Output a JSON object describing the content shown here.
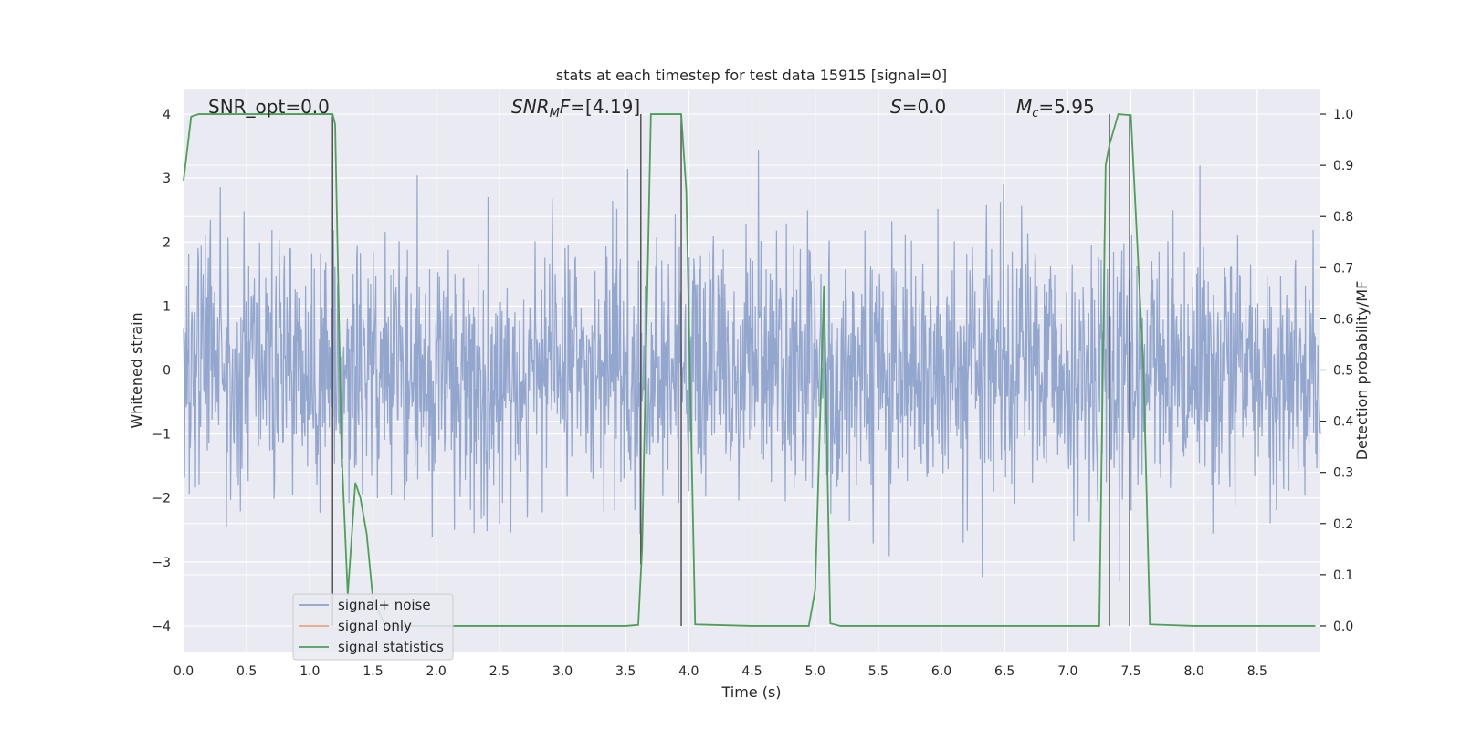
{
  "chart_data": {
    "type": "line",
    "title": "stats at each timestep for test data 15915 [signal=0]",
    "xlabel": "Time (s)",
    "ylabel": "Whitened strain",
    "ylabel_right": "Detection probability/MF",
    "xlim": [
      0,
      9
    ],
    "ylim": [
      -4.4,
      4.4
    ],
    "ylim_right": [
      -0.05,
      1.05
    ],
    "xticks": [
      0.0,
      0.5,
      1.0,
      1.5,
      2.0,
      2.5,
      3.0,
      3.5,
      4.0,
      4.5,
      5.0,
      5.5,
      6.0,
      6.5,
      7.0,
      7.5,
      8.0,
      8.5
    ],
    "xtick_labels": [
      "0.0",
      "0.5",
      "1.0",
      "1.5",
      "2.0",
      "2.5",
      "3.0",
      "3.5",
      "4.0",
      "4.5",
      "5.0",
      "5.5",
      "6.0",
      "6.5",
      "7.0",
      "7.5",
      "8.0",
      "8.5"
    ],
    "yticks": [
      -4,
      -3,
      -2,
      -1,
      0,
      1,
      2,
      3,
      4
    ],
    "ytick_labels": [
      "−4",
      "−3",
      "−2",
      "−1",
      "0",
      "1",
      "2",
      "3",
      "4"
    ],
    "yticks_right": [
      0.0,
      0.1,
      0.2,
      0.3,
      0.4,
      0.5,
      0.6,
      0.7,
      0.8,
      0.9,
      1.0
    ],
    "ytick_labels_right": [
      "0.0",
      "0.1",
      "0.2",
      "0.3",
      "0.4",
      "0.5",
      "0.6",
      "0.7",
      "0.8",
      "0.9",
      "1.0"
    ],
    "grid": true,
    "legend_position": "lower-left",
    "annotations": {
      "snr_opt": "SNR_opt=0.0",
      "snr_mf_base": "SNR",
      "snr_mf_sub": "M",
      "snr_mf_rest": "F=[4.19]",
      "s_italic": "S",
      "s_rest": "=0.0",
      "mc_base": "M",
      "mc_sub": "c",
      "mc_rest": "=5.95"
    },
    "series": [
      {
        "name": "signal+ noise",
        "color": "#8ea2cb",
        "axis": "left",
        "kind": "whitened-noise",
        "spread_std": 1.0,
        "x_range": [
          0,
          9
        ]
      },
      {
        "name": "signal only",
        "color": "#e9a585",
        "axis": "left",
        "x": [
          0,
          9
        ],
        "y": [
          0,
          0
        ]
      },
      {
        "name": "signal statistics",
        "color": "#4e9f58",
        "axis": "right",
        "x": [
          0.0,
          0.06,
          0.12,
          0.5,
          1.0,
          1.18,
          1.2,
          1.25,
          1.3,
          1.36,
          1.4,
          1.45,
          1.5,
          1.6,
          2.0,
          2.5,
          3.0,
          3.5,
          3.6,
          3.63,
          3.7,
          3.94,
          3.98,
          4.05,
          4.5,
          4.95,
          5.0,
          5.07,
          5.12,
          5.2,
          6.0,
          6.5,
          7.0,
          7.25,
          7.3,
          7.33,
          7.4,
          7.5,
          7.6,
          7.65,
          8.0,
          8.5,
          8.96
        ],
        "y": [
          0.87,
          0.995,
          1.0,
          1.0,
          1.0,
          1.0,
          0.98,
          0.35,
          0.06,
          0.28,
          0.25,
          0.18,
          0.05,
          0.0,
          0.0,
          0.0,
          0.0,
          0.0,
          0.002,
          0.15,
          1.0,
          1.0,
          0.85,
          0.003,
          0.0,
          0.0,
          0.07,
          0.665,
          0.005,
          0.0,
          0.0,
          0.0,
          0.0,
          0.0,
          0.9,
          0.94,
          1.0,
          0.998,
          0.5,
          0.003,
          0.0,
          0.0,
          0.0
        ]
      }
    ],
    "vertical_lines_color": "#555555",
    "vertical_lines": [
      {
        "x": 1.18,
        "y_top": 1.0,
        "y_bottom": 0.0
      },
      {
        "x": 3.62,
        "y_top": 1.0,
        "y_bottom": 0.12
      },
      {
        "x": 3.94,
        "y_top": 1.0,
        "y_bottom": 0.0
      },
      {
        "x": 7.33,
        "y_top": 1.0,
        "y_bottom": 0.0
      },
      {
        "x": 7.49,
        "y_top": 1.0,
        "y_bottom": 0.0
      }
    ]
  }
}
